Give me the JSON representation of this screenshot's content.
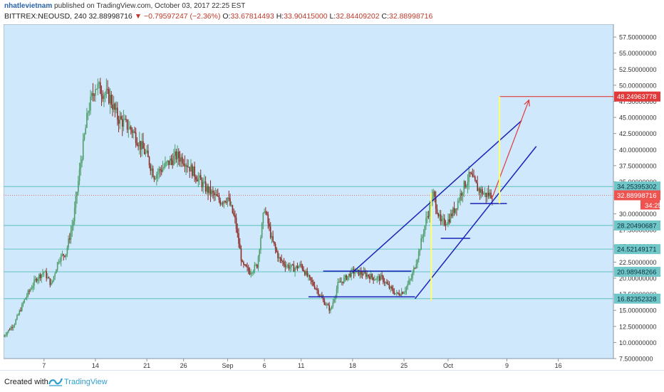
{
  "header": {
    "author": "nhatlevietnam",
    "published": "published on TradingView.com, October 03, 2017 22:25 EST",
    "symbol": "BITTREX:NEOUSD, 240",
    "last": "32.88998716",
    "change_icon": "down-triangle-icon",
    "change": "−0.79597247 (−2.36%)",
    "o_label": "O:",
    "o_value": "33.67814493",
    "h_label": "H:",
    "h_value": "33.90415000",
    "l_label": "L:",
    "l_value": "32.84409202",
    "c_label": "C:",
    "c_value": "32.88998716"
  },
  "footer": {
    "created": "Created with",
    "brand": "TradingView",
    "logo_icon": "tradingview-logo-icon"
  },
  "colors": {
    "background": "#cfe8fb",
    "up": "#4e9e6b",
    "down": "#8b2b24",
    "hline": "#6fc7c9",
    "trend": "#1a22b8",
    "yellow": "#ffff66",
    "target": "#e03a3a",
    "current": "#ef5350"
  },
  "chart_data": {
    "type": "candlestick",
    "ylim": [
      7.5,
      59.5
    ],
    "y_ticks": [
      "7.50000000",
      "10.00000000",
      "12.50000000",
      "15.00000000",
      "17.50000000",
      "20.00000000",
      "22.50000000",
      "25.00000000",
      "27.50000000",
      "30.00000000",
      "32.50000000",
      "35.00000000",
      "37.50000000",
      "40.00000000",
      "42.50000000",
      "45.00000000",
      "47.50000000",
      "50.00000000",
      "52.50000000",
      "55.00000000",
      "57.50000000"
    ],
    "x_ticks": [
      "7",
      "14",
      "21",
      "26",
      "Sep",
      "6",
      "11",
      "18",
      "25",
      "Oct",
      "9",
      "16"
    ],
    "x_tick_days": [
      7,
      14,
      21,
      26,
      32,
      37,
      42,
      49,
      56,
      62,
      70,
      77
    ],
    "x_range_days": [
      1.5,
      84.5
    ],
    "x_note": "day index where 1 = 1 Aug 2017, 32 = 1 Sep, 62 = 1 Oct",
    "price_levels": [
      {
        "label": "34.25395302",
        "value": 34.25
      },
      {
        "label": "28.20490687",
        "value": 28.2
      },
      {
        "label": "24.52149171",
        "value": 24.52
      },
      {
        "label": "20.98948266",
        "value": 20.99
      },
      {
        "label": "16.82352328",
        "value": 16.82
      }
    ],
    "target": {
      "label": "48.24963778",
      "value": 48.25
    },
    "current": {
      "label": "32.88998716",
      "value": 32.89,
      "countdown": "34:25"
    },
    "close_path": [
      [
        1.5,
        11
      ],
      [
        3,
        13
      ],
      [
        4.5,
        17
      ],
      [
        6,
        20
      ],
      [
        7,
        21
      ],
      [
        8,
        19
      ],
      [
        9,
        23
      ],
      [
        10,
        24
      ],
      [
        11,
        29
      ],
      [
        12,
        38
      ],
      [
        13,
        46
      ],
      [
        14,
        50
      ],
      [
        15,
        49
      ],
      [
        16,
        48
      ],
      [
        17,
        45
      ],
      [
        18,
        44
      ],
      [
        19,
        43
      ],
      [
        20,
        41
      ],
      [
        21,
        39
      ],
      [
        22,
        36
      ],
      [
        23,
        37
      ],
      [
        24,
        38
      ],
      [
        25,
        39
      ],
      [
        26,
        38.5
      ],
      [
        27,
        37
      ],
      [
        28,
        35.5
      ],
      [
        29,
        34
      ],
      [
        30,
        33
      ],
      [
        31,
        32
      ],
      [
        32,
        32.5
      ],
      [
        33,
        29
      ],
      [
        34,
        22
      ],
      [
        35,
        21
      ],
      [
        36,
        22
      ],
      [
        37,
        31
      ],
      [
        38,
        26
      ],
      [
        39,
        23
      ],
      [
        40,
        22
      ],
      [
        41,
        21.5
      ],
      [
        42,
        22
      ],
      [
        43,
        20
      ],
      [
        44,
        18.5
      ],
      [
        45,
        16.5
      ],
      [
        46,
        15
      ],
      [
        47,
        19
      ],
      [
        48,
        20
      ],
      [
        49,
        21
      ],
      [
        50,
        20.8
      ],
      [
        51,
        20.5
      ],
      [
        52,
        20
      ],
      [
        53,
        20
      ],
      [
        54,
        18.5
      ],
      [
        55,
        17.5
      ],
      [
        56,
        18
      ],
      [
        57,
        20
      ],
      [
        58,
        24
      ],
      [
        59,
        29
      ],
      [
        60,
        33
      ],
      [
        61,
        28.5
      ],
      [
        62,
        29
      ],
      [
        63,
        31
      ],
      [
        64,
        34
      ],
      [
        65,
        36
      ],
      [
        66,
        34
      ],
      [
        67,
        33
      ],
      [
        68,
        33
      ]
    ],
    "drawings": [
      {
        "name": "support-line",
        "from": [
          43,
          17.1
        ],
        "to": [
          57.5,
          17.1
        ]
      },
      {
        "name": "resistance-line",
        "from": [
          45,
          21.1
        ],
        "to": [
          57,
          21.1
        ]
      },
      {
        "name": "channel-lower",
        "from": [
          57.5,
          16.8
        ],
        "to": [
          74,
          40.5
        ]
      },
      {
        "name": "channel-upper",
        "from": [
          49,
          20.9
        ],
        "to": [
          72,
          44.5
        ]
      },
      {
        "name": "pullback-line-1",
        "from": [
          61,
          26.2
        ],
        "to": [
          65,
          26.2
        ]
      },
      {
        "name": "pullback-line-2",
        "from": [
          65,
          31.6
        ],
        "to": [
          70,
          31.6
        ]
      },
      {
        "name": "target-arrow",
        "from": [
          68,
          32.5
        ],
        "to": [
          73,
          47.7
        ]
      },
      {
        "name": "target-line",
        "from": [
          69,
          48.25
        ],
        "to": [
          84.5,
          48.25
        ]
      },
      {
        "name": "yellow-vline-1",
        "from": [
          59.7,
          16.5
        ],
        "to": [
          59.7,
          33.3
        ]
      },
      {
        "name": "yellow-vline-2",
        "from": [
          69,
          31.6
        ],
        "to": [
          69,
          48.25
        ]
      }
    ]
  }
}
